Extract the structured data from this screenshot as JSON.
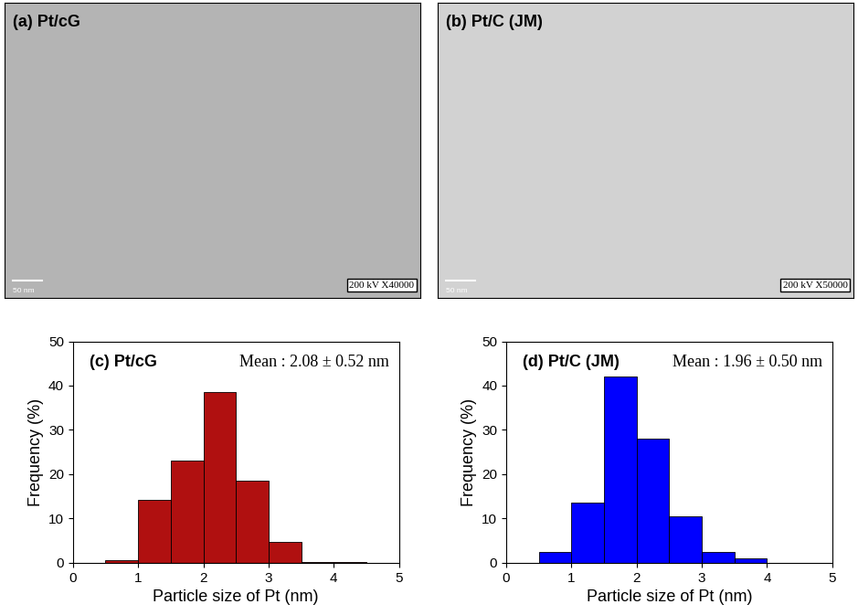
{
  "chart_data": [
    {
      "type": "image",
      "title": "(a) Pt/cG",
      "scale_bar": "50 nm",
      "annotation": "200 kV X40000",
      "color": "#b4b4b4",
      "tick_labels": false
    },
    {
      "type": "image",
      "title": "(b) Pt/C (JM)",
      "scale_bar": "50 nm",
      "annotation": "200 kV X50000",
      "color": "#d2d2d2",
      "tick_labels": false
    },
    {
      "type": "histogram",
      "title": "(c) Pt/cG",
      "annotation": "Mean : 2.08 ± 0.52 nm",
      "x_label": "Particle size of Pt (nm)",
      "y_label": "Frequency (%)",
      "bins": [
        0.5,
        1.0,
        1.5,
        2.0,
        2.5,
        3.0,
        3.5,
        4.0,
        4.5
      ],
      "values": [
        0.5,
        14.2,
        23.0,
        38.5,
        18.5,
        4.8,
        0.2,
        0.1
      ],
      "color": "#b01010",
      "xlim": [
        0,
        5
      ],
      "xticks": [
        0,
        1,
        2,
        3,
        4,
        5
      ],
      "ylim": [
        0,
        50
      ],
      "yticks": [
        0,
        10,
        20,
        30,
        40,
        50
      ]
    },
    {
      "type": "histogram",
      "title": "(d) Pt/C (JM)",
      "annotation": "Mean : 1.96 ± 0.50 nm",
      "x_label": "Particle size of Pt (nm)",
      "y_label": "Frequency (%)",
      "bins": [
        0.5,
        1.0,
        1.5,
        2.0,
        2.5,
        3.0,
        3.5,
        4.0
      ],
      "values": [
        2.5,
        13.5,
        42.0,
        28.0,
        10.5,
        2.5,
        1.0
      ],
      "color": "#0000ff",
      "xlim": [
        0,
        5
      ],
      "xticks": [
        0,
        1,
        2,
        3,
        4,
        5
      ],
      "ylim": [
        0,
        50
      ],
      "yticks": [
        0,
        10,
        20,
        30,
        40,
        50
      ]
    }
  ]
}
